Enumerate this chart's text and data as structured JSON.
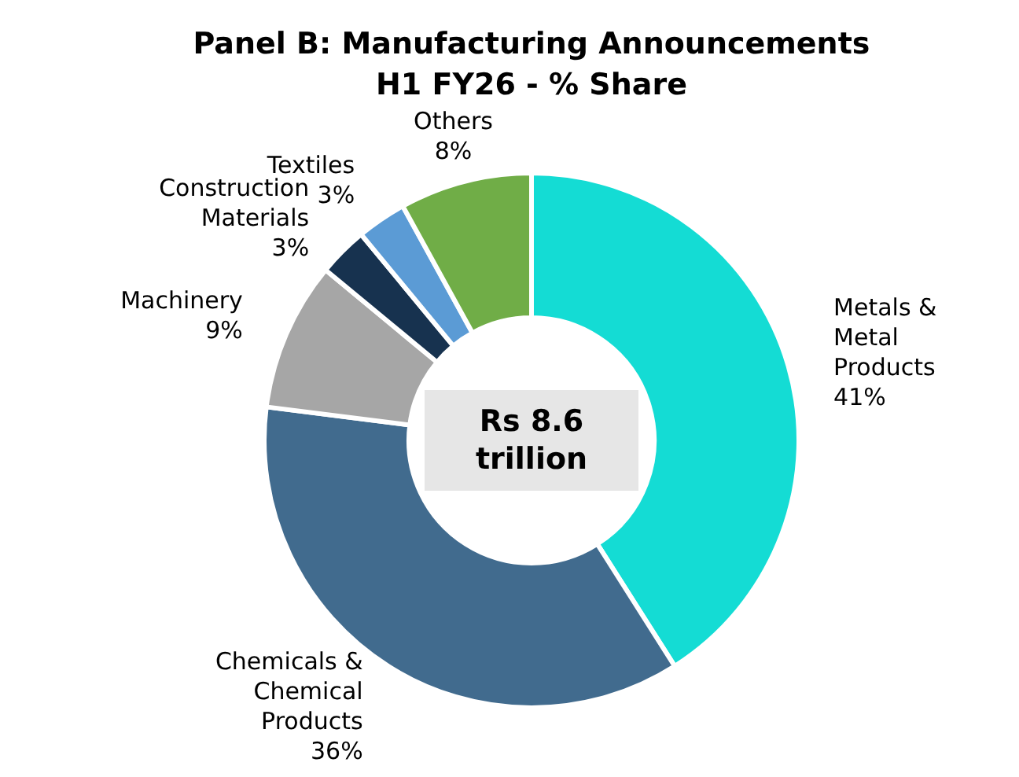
{
  "chart_data": {
    "type": "donut",
    "title": "Panel B: Manufacturing Announcements H1 FY26 - % Share",
    "categories": [
      "Metals & Metal Products",
      "Chemicals & Chemical Products",
      "Machinery",
      "Construction Materials",
      "Textiles",
      "Others"
    ],
    "values": [
      41,
      36,
      9,
      3,
      3,
      8
    ],
    "value_labels": [
      "41%",
      "36%",
      "9%",
      "3%",
      "3%",
      "8%"
    ],
    "colors": [
      "#14dcd4",
      "#416b8e",
      "#a6a6a6",
      "#17324f",
      "#5b9bd5",
      "#70ad47"
    ],
    "annotations": [
      "Rs 8.6 trillion"
    ]
  }
}
